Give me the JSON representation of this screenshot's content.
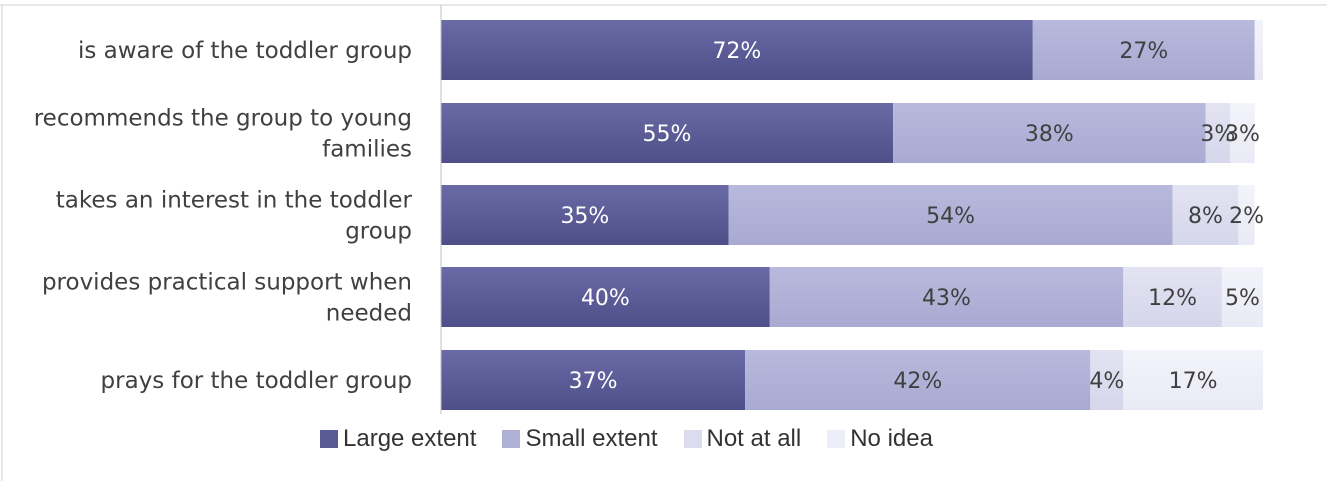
{
  "chart_data": {
    "type": "bar",
    "orientation": "horizontal",
    "stacked": true,
    "categories": [
      "is aware of the toddler group",
      "recommends the group to young families",
      "takes an interest in the toddler group",
      "provides practical support when needed",
      "prays for the toddler group"
    ],
    "category_lines": [
      [
        "is aware of the toddler group"
      ],
      [
        "recommends the group to young",
        "families"
      ],
      [
        "takes an interest in the toddler",
        "group"
      ],
      [
        "provides practical support when",
        "needed"
      ],
      [
        "prays for the toddler group"
      ]
    ],
    "series": [
      {
        "name": "Large extent",
        "color": "#5a5b96",
        "values": [
          72,
          55,
          35,
          40,
          37
        ],
        "labels": [
          "72%",
          "55%",
          "35%",
          "40%",
          "37%"
        ]
      },
      {
        "name": "Small extent",
        "color": "#afb0d6",
        "values": [
          27,
          38,
          54,
          43,
          42
        ],
        "labels": [
          "27%",
          "38%",
          "54%",
          "43%",
          "42%"
        ]
      },
      {
        "name": "Not at all",
        "color": "#dcdcee",
        "values": [
          0,
          3,
          8,
          12,
          4
        ],
        "labels": [
          "",
          "3%",
          "8%",
          "12%",
          "4%"
        ]
      },
      {
        "name": "No idea",
        "color": "#eeeef8",
        "values": [
          1,
          3,
          2,
          5,
          17
        ],
        "labels": [
          "",
          "3%",
          "2%",
          "5%",
          "17%"
        ]
      }
    ],
    "xlim": [
      0,
      100
    ],
    "legend_position": "bottom",
    "grid": false
  }
}
